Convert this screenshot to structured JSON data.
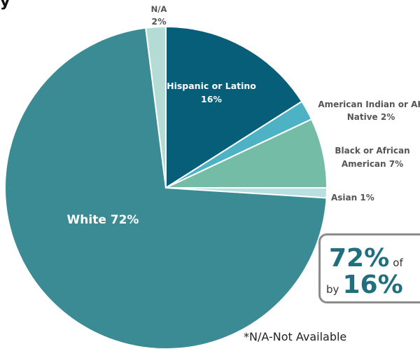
{
  "chart_data": {
    "type": "pie",
    "slices": [
      {
        "label": "Hispanic or Latino",
        "value": 16,
        "display": "16%",
        "color": "#065e78"
      },
      {
        "label": "American Indian or AK Native",
        "value": 2,
        "display": "2%",
        "color": "#4db3c4"
      },
      {
        "label": "Black or African American",
        "value": 7,
        "display": "7%",
        "color": "#75bca6"
      },
      {
        "label": "Asian",
        "value": 1,
        "display": "1%",
        "color": "#b9e0e0"
      },
      {
        "label": "White",
        "value": 72,
        "display": "72%",
        "color": "#3b8b95"
      },
      {
        "label": "N/A",
        "value": 2,
        "display": "2%",
        "color": "#b4dcd4"
      }
    ],
    "start_angle_deg": 0,
    "direction": "clockwise"
  },
  "labels": {
    "hispanic": {
      "line1": "Hispanic or Latino",
      "line2": "16%"
    },
    "amind": {
      "line1": "American Indian or AK",
      "line2": "Native 2%"
    },
    "black": {
      "line1": "Black or African",
      "line2": "American 7%"
    },
    "asian": {
      "line1": "Asian 1%"
    },
    "white": {
      "line1": "White 72%"
    },
    "na": {
      "line1": "N/A",
      "line2": "2%"
    }
  },
  "callout": {
    "big1": "72%",
    "small1": "of",
    "small2": "by",
    "big2": "16%"
  },
  "footnote": "*N/A-Not Available",
  "top_fragment": "y"
}
